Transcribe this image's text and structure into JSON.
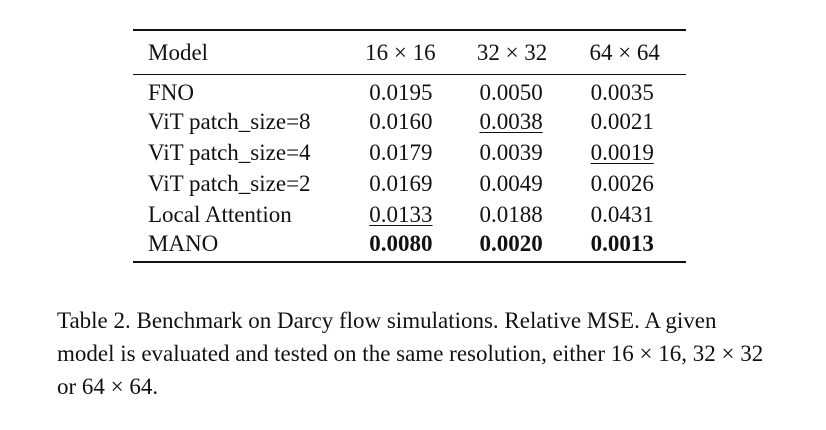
{
  "table": {
    "headers": [
      "Model",
      "16 × 16",
      "32 × 32",
      "64 × 64"
    ],
    "rows": [
      {
        "model": "FNO",
        "v16": "0.0195",
        "v32": "0.0050",
        "v64": "0.0035"
      },
      {
        "model": "ViT patch_size=8",
        "v16": "0.0160",
        "v32": "0.0038",
        "v64": "0.0021"
      },
      {
        "model": "ViT patch_size=4",
        "v16": "0.0179",
        "v32": "0.0039",
        "v64": "0.0019"
      },
      {
        "model": "ViT patch_size=2",
        "v16": "0.0169",
        "v32": "0.0049",
        "v64": "0.0026"
      },
      {
        "model": "Local Attention",
        "v16": "0.0133",
        "v32": "0.0188",
        "v64": "0.0431"
      },
      {
        "model": "MANO",
        "v16": "0.0080",
        "v32": "0.0020",
        "v64": "0.0013"
      }
    ]
  },
  "caption": "Table 2. Benchmark on Darcy flow simulations. Relative MSE. A given model is evaluated and tested on the same resolution, either 16 × 16, 32 × 32 or 64 × 64."
}
